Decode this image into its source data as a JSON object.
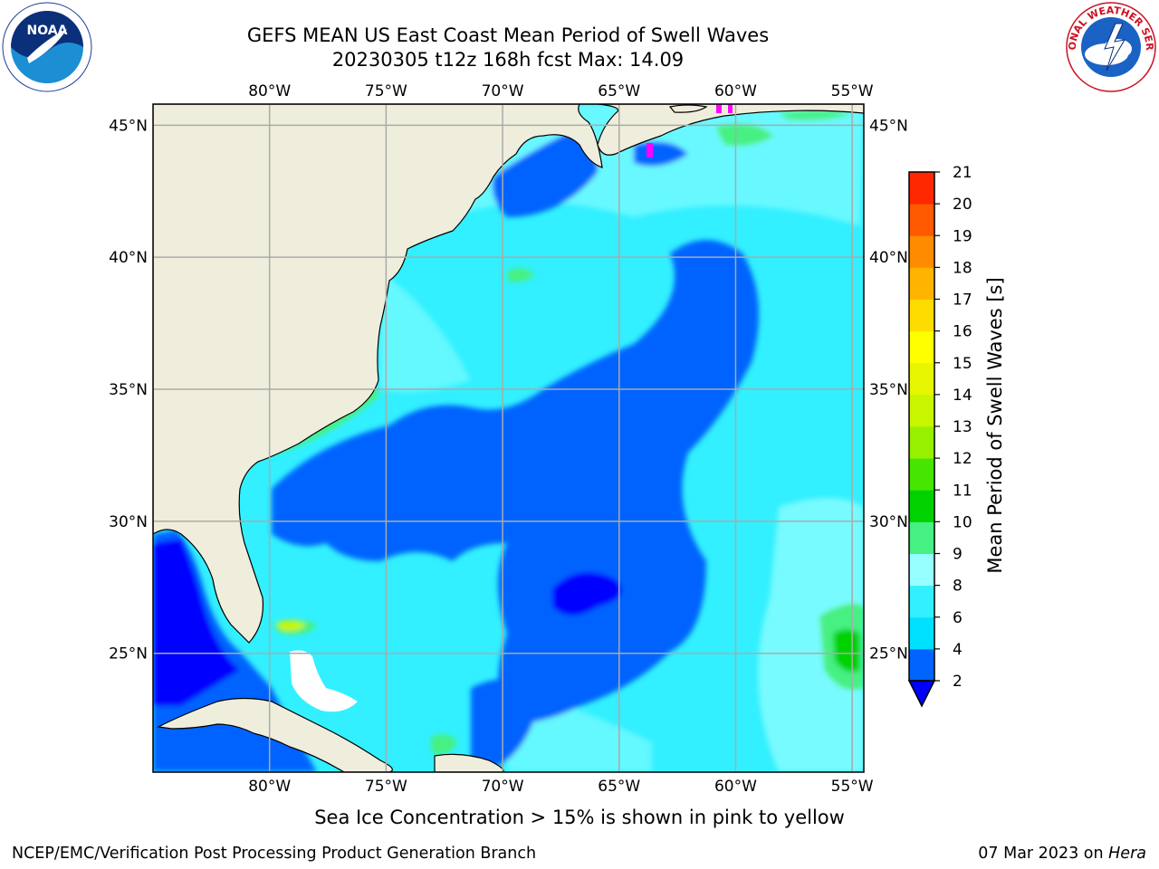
{
  "title": {
    "line1": "GEFS MEAN US East Coast Mean Period of Swell Waves",
    "line2": "20230305 t12z 168h fcst   Max: 14.09"
  },
  "logos": {
    "left": "noaa-logo",
    "left_text": "NOAA",
    "right": "nws-logo",
    "right_text": "NATIONAL WEATHER SERVICE"
  },
  "map": {
    "lon_labels": [
      "80°W",
      "75°W",
      "70°W",
      "65°W",
      "60°W",
      "55°W"
    ],
    "lat_labels": [
      "45°N",
      "40°N",
      "35°N",
      "30°N",
      "25°N"
    ],
    "lon_values": [
      -80,
      -75,
      -70,
      -65,
      -60,
      -55
    ],
    "lat_values": [
      45,
      40,
      35,
      30,
      25
    ],
    "lon_range": [
      -85,
      -54.5
    ],
    "lat_range": [
      20.5,
      45.8
    ],
    "land_color": "#efeedc",
    "ocean_background": "#32f0ff"
  },
  "colorbar": {
    "label": "Mean Period of Swell Waves [s]",
    "ticks": [
      "2",
      "4",
      "6",
      "8",
      "9",
      "10",
      "11",
      "12",
      "13",
      "14",
      "15",
      "16",
      "17",
      "18",
      "19",
      "20",
      "21"
    ],
    "colors": [
      "#0064ff",
      "#00e1ff",
      "#32f0ff",
      "#96ffff",
      "#46f082",
      "#00d200",
      "#46e600",
      "#96f000",
      "#c8f500",
      "#e6f500",
      "#ffff00",
      "#ffdc00",
      "#ffb400",
      "#ff8c00",
      "#ff5a00",
      "#ff2800",
      "#ff0000"
    ],
    "extend_low_color": "#0000ff"
  },
  "caption": "Sea Ice Concentration > 15% is shown in pink to yellow",
  "footer": {
    "left": "NCEP/EMC/Verification Post Processing Product Generation Branch",
    "date": "07 Mar 2023 on ",
    "machine": "Hera"
  }
}
